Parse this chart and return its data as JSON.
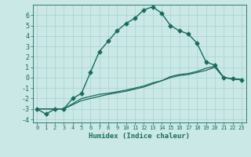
{
  "xlabel": "Humidex (Indice chaleur)",
  "ylabel": "",
  "xlim": [
    -0.5,
    23.5
  ],
  "ylim": [
    -4.3,
    7.0
  ],
  "yticks": [
    -4,
    -3,
    -2,
    -1,
    0,
    1,
    2,
    3,
    4,
    5,
    6
  ],
  "xticks": [
    0,
    1,
    2,
    3,
    4,
    5,
    6,
    7,
    8,
    9,
    10,
    11,
    12,
    13,
    14,
    15,
    16,
    17,
    18,
    19,
    20,
    21,
    22,
    23
  ],
  "background_color": "#c9e8e6",
  "line_color": "#1b6b5c",
  "grid_color": "#9fcece",
  "series": [
    {
      "x": [
        0,
        1,
        2,
        3,
        4,
        5,
        6,
        7,
        8,
        9,
        10,
        11,
        12,
        13,
        14,
        15,
        16,
        17,
        18,
        19,
        20,
        21,
        22,
        23
      ],
      "y": [
        -3.0,
        -3.5,
        -3.0,
        -3.0,
        -2.0,
        -1.5,
        0.5,
        2.5,
        3.5,
        4.5,
        5.2,
        5.7,
        6.5,
        6.8,
        6.2,
        5.0,
        4.5,
        4.2,
        3.3,
        1.5,
        1.2,
        0.0,
        -0.1,
        -0.2
      ],
      "marker": "D",
      "markersize": 2.5,
      "linewidth": 1.0
    },
    {
      "x": [
        0,
        2,
        3,
        5,
        6,
        7,
        8,
        10,
        11,
        12,
        13,
        14,
        15,
        16,
        17,
        18,
        19,
        20,
        21,
        22,
        23
      ],
      "y": [
        -3.0,
        -3.0,
        -3.0,
        -2.0,
        -1.8,
        -1.6,
        -1.5,
        -1.2,
        -1.0,
        -0.8,
        -0.5,
        -0.3,
        0.0,
        0.2,
        0.3,
        0.5,
        0.7,
        1.0,
        0.0,
        -0.1,
        -0.2
      ],
      "marker": null,
      "markersize": 0,
      "linewidth": 0.9
    },
    {
      "x": [
        0,
        2,
        3,
        5,
        6,
        7,
        8,
        10,
        11,
        12,
        13,
        14,
        15,
        16,
        17,
        18,
        19,
        20,
        21,
        22,
        23
      ],
      "y": [
        -3.0,
        -3.0,
        -3.0,
        -2.2,
        -2.0,
        -1.8,
        -1.6,
        -1.3,
        -1.1,
        -0.9,
        -0.6,
        -0.3,
        0.1,
        0.3,
        0.4,
        0.6,
        0.9,
        1.1,
        0.0,
        -0.1,
        -0.2
      ],
      "marker": null,
      "markersize": 0,
      "linewidth": 0.9
    }
  ]
}
